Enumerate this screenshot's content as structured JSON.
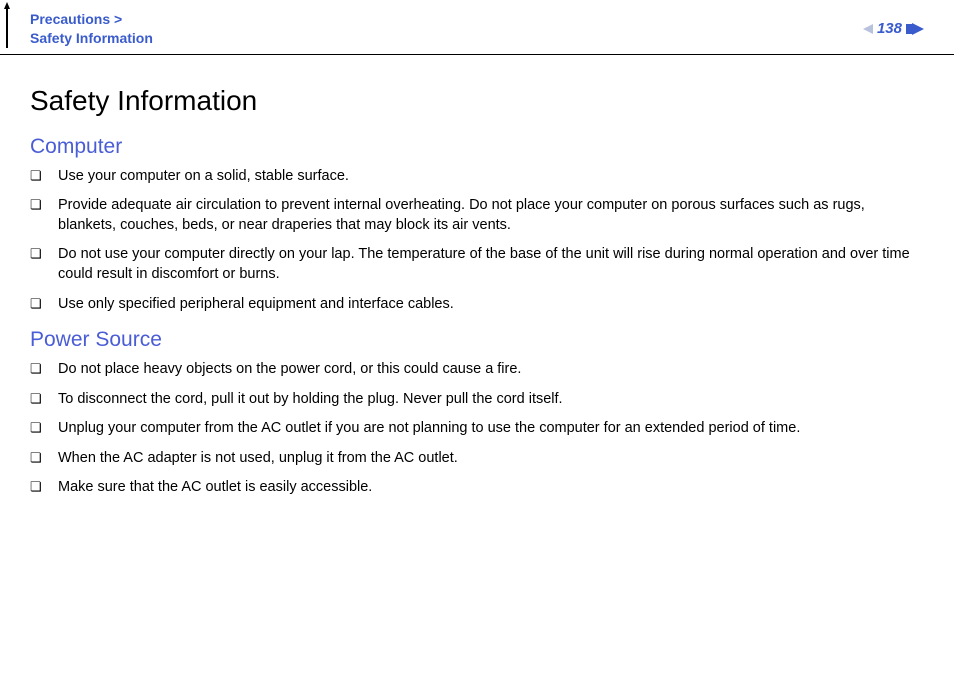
{
  "header": {
    "breadcrumb_top": "Precautions >",
    "breadcrumb_bottom": "Safety Information",
    "page_number": "138"
  },
  "page": {
    "title": "Safety Information"
  },
  "sections": {
    "computer": {
      "title": "Computer",
      "items": [
        "Use your computer on a solid, stable surface.",
        "Provide adequate air circulation to prevent internal overheating. Do not place your computer on porous surfaces such as rugs, blankets, couches, beds, or near draperies that may block its air vents.",
        "Do not use your computer directly on your lap. The temperature of the base of the unit will rise during normal operation and over time could result in discomfort or burns.",
        "Use only specified peripheral equipment and interface cables."
      ]
    },
    "power": {
      "title": "Power Source",
      "items": [
        "Do not place heavy objects on the power cord, or this could cause a fire.",
        "To disconnect the cord, pull it out by holding the plug. Never pull the cord itself.",
        "Unplug your computer from the AC outlet if you are not planning to use the computer for an extended period of time.",
        "When the AC adapter is not used, unplug it from the AC outlet.",
        "Make sure that the AC outlet is easily accessible."
      ]
    }
  },
  "colors": {
    "link_blue": "#3a5bcc",
    "heading_blue": "#4a5dd4",
    "arrow_light": "#b9c2dd"
  }
}
